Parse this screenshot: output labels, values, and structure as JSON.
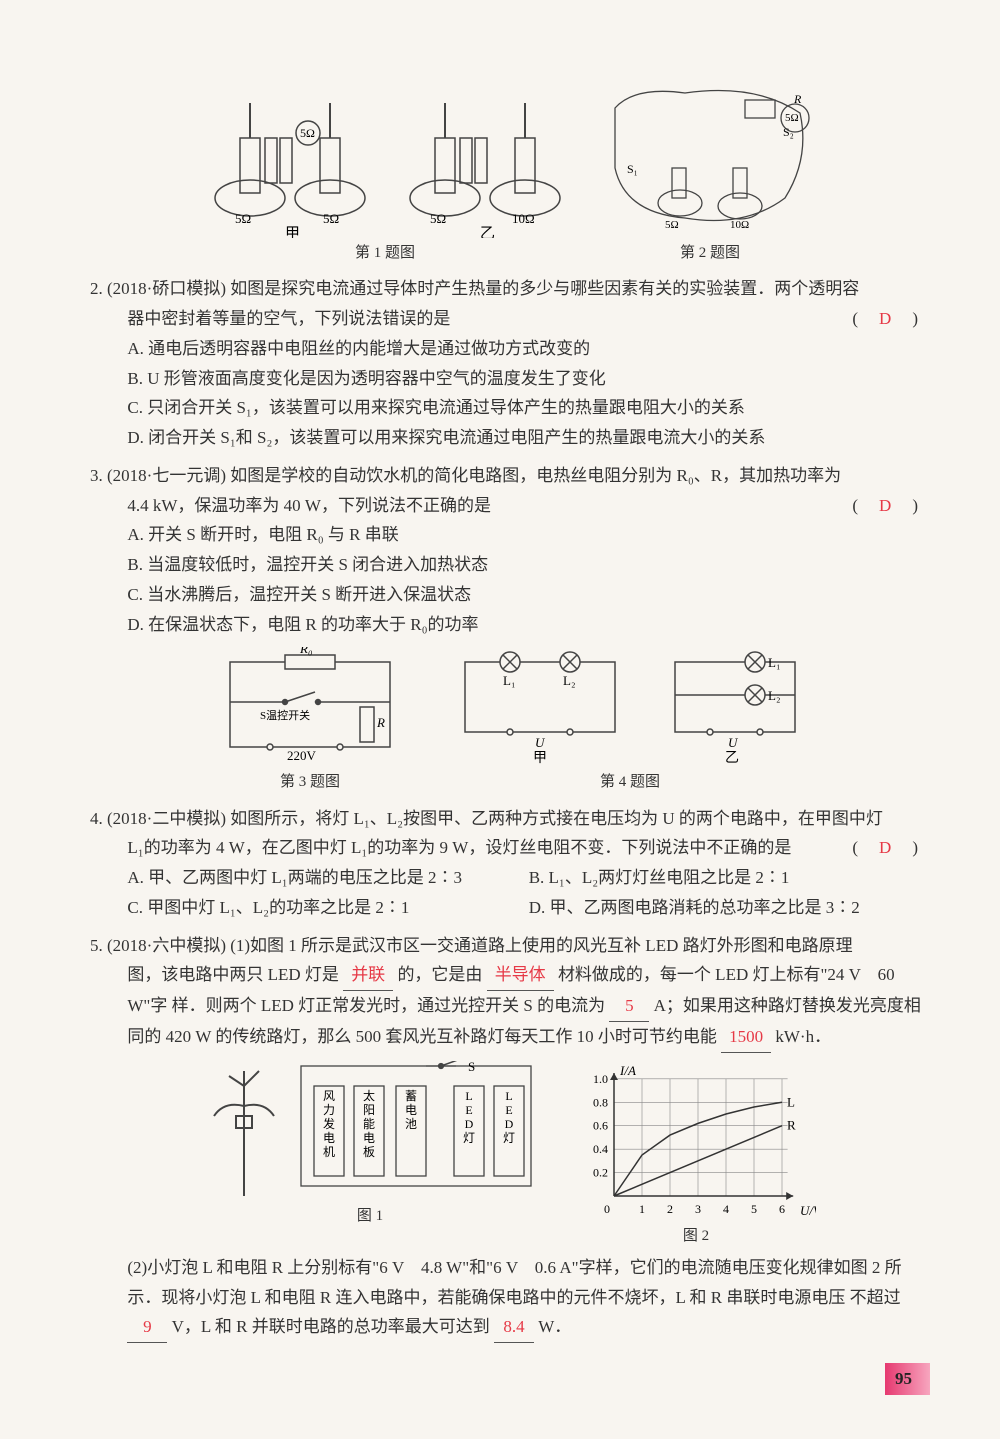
{
  "figures": {
    "fig1": {
      "caption": "第 1 题图",
      "left_label": "甲",
      "right_label": "乙",
      "left_r1": "5Ω",
      "left_r2": "5Ω",
      "left_top": "5Ω",
      "right_r1": "5Ω",
      "right_r2": "10Ω"
    },
    "fig2": {
      "caption": "第 2 题图",
      "s1": "S₁",
      "s2": "S₂",
      "r1": "5Ω",
      "r2": "10Ω",
      "top_r": "5Ω",
      "R": "R"
    },
    "fig3": {
      "caption": "第 3 题图",
      "r0": "R₀",
      "s": "S温控开关",
      "r": "R",
      "v": "220V"
    },
    "fig4": {
      "caption": "第 4 题图",
      "l1": "L₁",
      "l2": "L₂",
      "u": "U",
      "left_label": "甲",
      "right_label": "乙"
    },
    "fig5": {
      "left_caption": "图 1",
      "right_caption": "图 2",
      "blocks": [
        "风力发电机",
        "太阳能电板",
        "蓄电池",
        "LED灯",
        "LED灯"
      ],
      "switch": "S",
      "chart": {
        "type": "line",
        "xlabel": "U/V",
        "ylabel": "I/A",
        "xlim": [
          0,
          6.5
        ],
        "ylim": [
          0,
          1.05
        ],
        "xtick_step": 1,
        "ytick_step": 0.2,
        "xticks": [
          "1",
          "2",
          "3",
          "4",
          "5",
          "6"
        ],
        "yticks": [
          "0.2",
          "0.4",
          "0.6",
          "0.8",
          "1.0"
        ],
        "grid_color": "#888",
        "background_color": "#f8f5f0",
        "series": [
          {
            "name": "L",
            "color": "#333",
            "width": 1.5,
            "dash": "none",
            "points": [
              [
                0,
                0
              ],
              [
                1,
                0.35
              ],
              [
                2,
                0.52
              ],
              [
                3,
                0.62
              ],
              [
                4,
                0.7
              ],
              [
                5,
                0.76
              ],
              [
                6,
                0.8
              ]
            ]
          },
          {
            "name": "R",
            "color": "#333",
            "width": 1.5,
            "dash": "none",
            "points": [
              [
                0,
                0
              ],
              [
                6,
                0.6
              ]
            ]
          }
        ],
        "label_fontsize": 14
      }
    }
  },
  "q2": {
    "num": "2.",
    "src": "(2018·硚口模拟)",
    "stem1": "如图是探究电流通过导体时产生热量的多少与哪些因素有关的实验装置．两个透明容",
    "stem2": "器中密封着等量的空气，下列说法错误的是",
    "answer": "D",
    "opts": {
      "A": "A. 通电后透明容器中电阻丝的内能增大是通过做功方式改变的",
      "B": "B. U 形管液面高度变化是因为透明容器中空气的温度发生了变化",
      "C": "C. 只闭合开关 S₁，该装置可以用来探究电流通过导体产生的热量跟电阻大小的关系",
      "D": "D. 闭合开关 S₁和 S₂，该装置可以用来探究电流通过电阻产生的热量跟电流大小的关系"
    }
  },
  "q3": {
    "num": "3.",
    "src": "(2018·七一元调)",
    "stem1": "如图是学校的自动饮水机的简化电路图，电热丝电阻分别为 R₀、R，其加热功率为",
    "stem2": "4.4 kW，保温功率为 40 W，下列说法不正确的是",
    "answer": "D",
    "opts": {
      "A": "A. 开关 S 断开时，电阻 R₀ 与 R 串联",
      "B": "B. 当温度较低时，温控开关 S 闭合进入加热状态",
      "C": "C. 当水沸腾后，温控开关 S 断开进入保温状态",
      "D": "D. 在保温状态下，电阻 R 的功率大于 R₀的功率"
    }
  },
  "q4": {
    "num": "4.",
    "src": "(2018·二中模拟)",
    "stem1": "如图所示，将灯 L₁、L₂按图甲、乙两种方式接在电压均为 U 的两个电路中，在甲图中灯",
    "stem2": "L₁的功率为 4 W，在乙图中灯 L₁的功率为 9 W，设灯丝电阻不变．下列说法中不正确的是",
    "answer": "D",
    "opts": {
      "A": "A. 甲、乙两图中灯 L₁两端的电压之比是 2∶3",
      "B": "B. L₁、L₂两灯灯丝电阻之比是 2∶1",
      "C": "C. 甲图中灯 L₁、L₂的功率之比是 2∶1",
      "D": "D. 甲、乙两图电路消耗的总功率之比是 3∶2"
    }
  },
  "q5": {
    "num": "5.",
    "src": "(2018·六中模拟)",
    "part1_a": "(1)如图 1 所示是武汉市区一交通道路上使用的风光互补 LED 路灯外形图和电路原理",
    "part1_b": "图，该电路中两只 LED 灯是",
    "part1_c": "的，它是由",
    "part1_d": "材料做成的，每一个 LED 灯上标有\"24 V　60 W\"字",
    "part1_e": "样．则两个 LED 灯正常发光时，通过光控开关 S 的电流为",
    "part1_f": "A；如果用这种路灯替换发光亮度相同的",
    "part1_g": "420 W 的传统路灯，那么 500 套风光互补路灯每天工作 10 小时可节约电能",
    "part1_h": "kW·h．",
    "fill1": "并联",
    "fill2": "半导体",
    "fill3": "5",
    "fill4": "1500",
    "part2_a": "(2)小灯泡 L 和电阻 R 上分别标有\"6 V　4.8 W\"和\"6 V　0.6 A\"字样，它们的电流随电压变化规律如图",
    "part2_b": "2 所示．现将小灯泡 L 和电阻 R 连入电路中，若能确保电路中的元件不烧坏，L 和 R 串联时电源电压",
    "part2_c": "不超过",
    "part2_d": "V，L 和 R 并联时电路的总功率最大可达到",
    "part2_e": "W．",
    "fill5": "9",
    "fill6": "8.4"
  },
  "page_number": "95"
}
